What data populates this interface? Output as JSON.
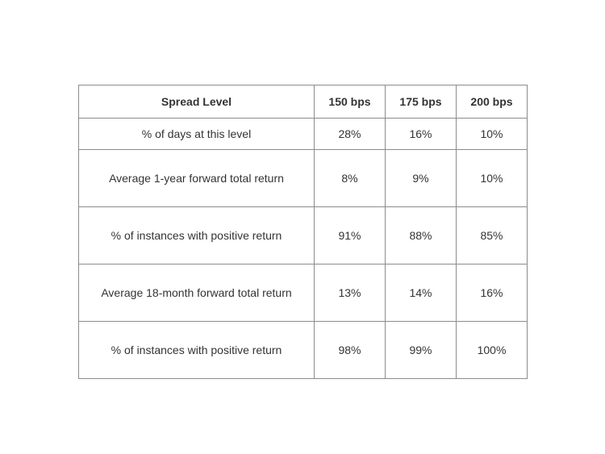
{
  "table": {
    "header": [
      "Spread Level",
      "150 bps",
      "175 bps",
      "200 bps"
    ],
    "rows": [
      [
        "% of days at this level",
        "28%",
        "16%",
        "10%"
      ],
      [
        "Average 1-year forward total return",
        "8%",
        "9%",
        "10%"
      ],
      [
        "% of instances with positive return",
        "91%",
        "88%",
        "85%"
      ],
      [
        "Average 18-month forward total return",
        "13%",
        "14%",
        "16%"
      ],
      [
        "% of instances with positive return",
        "98%",
        "99%",
        "100%"
      ]
    ]
  }
}
